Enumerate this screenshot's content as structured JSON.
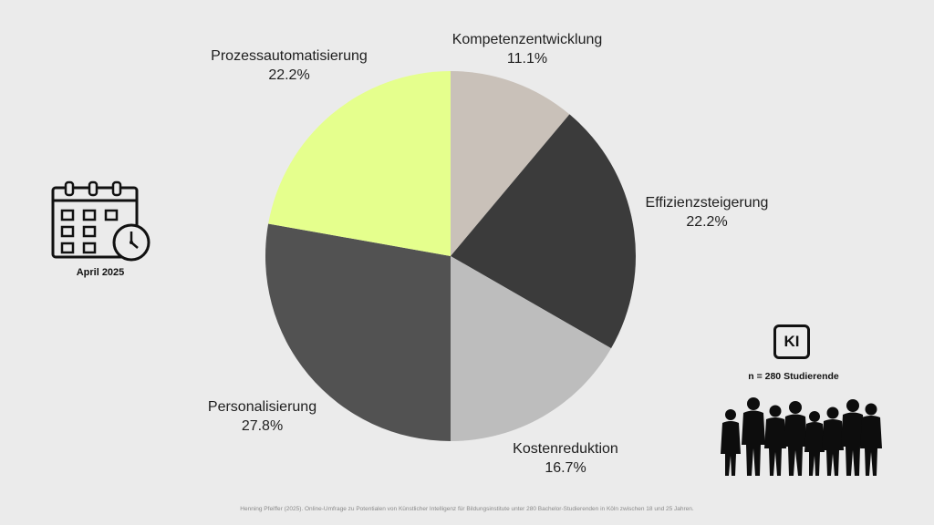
{
  "chart_data": {
    "type": "pie",
    "start_angle_deg": 0,
    "direction": "clockwise",
    "slices": [
      {
        "label": "Kompetenzentwicklung",
        "value_text": "11.1%",
        "value": 11.1,
        "color": "#c9c1b9"
      },
      {
        "label": "Effizienzsteigerung",
        "value_text": "22.2%",
        "value": 22.2,
        "color": "#3b3b3b"
      },
      {
        "label": "Kostenreduktion",
        "value_text": "16.7%",
        "value": 16.7,
        "color": "#bdbdbd"
      },
      {
        "label": "Personalisierung",
        "value_text": "27.8%",
        "value": 27.8,
        "color": "#525252"
      },
      {
        "label": "Prozessautomatisierung",
        "value_text": "22.2%",
        "value": 22.2,
        "color": "#e5ff8d"
      }
    ]
  },
  "side": {
    "date_caption": "April 2025",
    "ki_badge": "KI",
    "sample_size": "n = 280 Studierende"
  },
  "footer": {
    "source": "Henning Pfeiffer (2025). Online-Umfrage zu Potentialen von Künstlicher Intelligenz für Bildungsinstitute unter 280 Bachelor-Studierenden in Köln zwischen 18 und 25 Jahren."
  },
  "icons": [
    "calendar-icon",
    "clock-icon",
    "people-silhouette-icon"
  ]
}
